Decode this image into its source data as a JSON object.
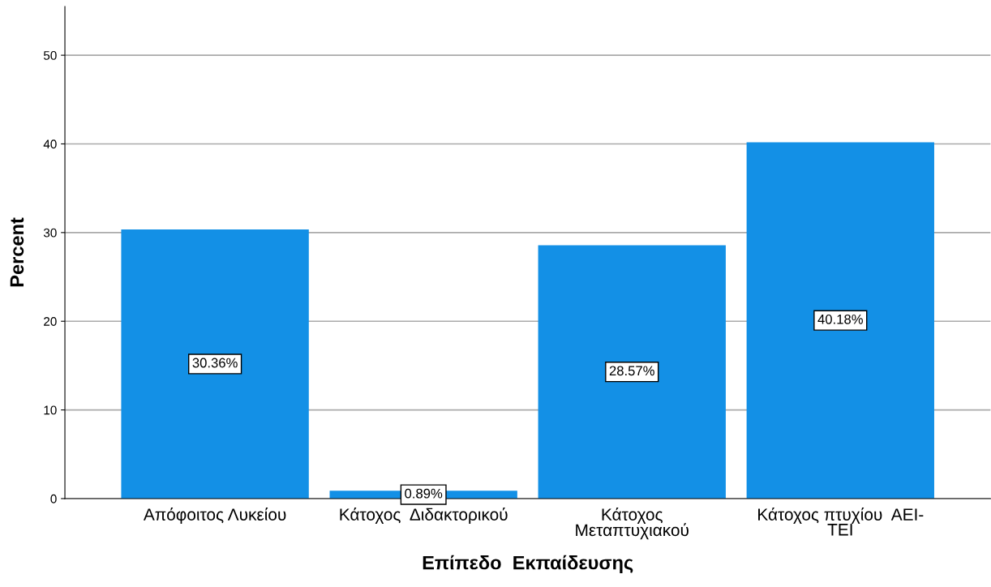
{
  "chart_data": {
    "type": "bar",
    "xlabel": "Επίπεδο  Εκπαίδευσης",
    "ylabel": "Percent",
    "categories": [
      "Απόφοιτος Λυκείου",
      "Κάτοχος  Διδακτορικού",
      "Κάτοχος\nΜεταπτυχιακού",
      "Κάτοχος πτυχίου  ΑΕΙ-\nΤΕΙ"
    ],
    "values": [
      30.36,
      0.89,
      28.57,
      40.18
    ],
    "value_labels": [
      "30.36%",
      "0.89%",
      "28.57%",
      "40.18%"
    ],
    "color": "#1390e6",
    "ylim": [
      0,
      55.5
    ],
    "yticks": [
      0,
      10,
      20,
      30,
      40,
      50
    ],
    "grid": "y"
  }
}
